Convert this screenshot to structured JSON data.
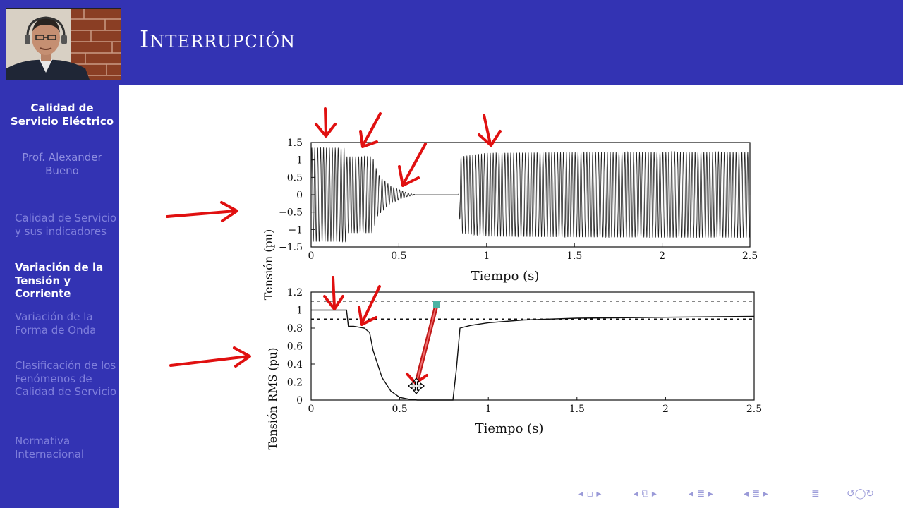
{
  "slide": {
    "title": "Interrupción"
  },
  "sidebar": {
    "course_title": "Calidad de Servicio Eléctrico",
    "author": "Prof. Alexander Bueno",
    "sections": [
      {
        "label": "Calidad de Servicio y sus indicadores",
        "active": false
      },
      {
        "label": "Variación de la Tensión y Corriente",
        "active": true
      },
      {
        "label": "Variación de la Forma de Onda",
        "active": false
      },
      {
        "label": "Clasificación de los Fenómenos de Calidad de Servicio",
        "active": false
      },
      {
        "label": "Normativa Internacional",
        "active": false
      }
    ]
  },
  "navigation": {
    "icons": [
      "nav-first-icon",
      "nav-frame-icon",
      "nav-section-icon",
      "nav-subsection-icon",
      "nav-outline-icon",
      "search-icon"
    ]
  },
  "colors": {
    "header_blue": "#3333b3",
    "annotation_red": "#e01010",
    "marker_teal": "#4cb3a3"
  },
  "chart_data": [
    {
      "type": "line",
      "xlabel": "Tiempo (s)",
      "ylabel": "Tensión (pu)",
      "xlim": [
        0,
        2.5
      ],
      "ylim": [
        -1.5,
        1.5
      ],
      "xticks": [
        "0",
        "0.5",
        "1",
        "1.5",
        "2",
        "2.5"
      ],
      "yticks": [
        "1.5",
        "1",
        "0.5",
        "0",
        "−0.5",
        "−1",
        "−1.5"
      ],
      "series": [
        {
          "envelope_t": [
            0,
            0.2,
            0.2,
            0.35,
            0.38,
            0.45,
            0.55,
            0.6,
            0.84,
            0.85,
            1.0,
            1.5,
            2.0,
            2.5
          ],
          "envelope_amp": [
            1.35,
            1.35,
            1.1,
            1.1,
            0.6,
            0.25,
            0.05,
            0.0,
            0.0,
            1.1,
            1.2,
            1.22,
            1.23,
            1.23
          ]
        }
      ]
    },
    {
      "type": "line",
      "xlabel": "Tiempo (s)",
      "ylabel": "Tensión RMS (pu)",
      "xlim": [
        0,
        2.5
      ],
      "ylim": [
        0,
        1.2
      ],
      "xticks": [
        "0",
        "0.5",
        "1",
        "1.5",
        "2",
        "2.5"
      ],
      "yticks": [
        "1.2",
        "1",
        "0.8",
        "0.6",
        "0.4",
        "0.2",
        "0"
      ],
      "thresholds": [
        1.1,
        0.9
      ],
      "series": [
        {
          "x": [
            0,
            0.2,
            0.21,
            0.24,
            0.3,
            0.33,
            0.35,
            0.4,
            0.45,
            0.5,
            0.55,
            0.6,
            0.8,
            0.82,
            0.84,
            0.9,
            1.0,
            1.2,
            1.5,
            2.0,
            2.5
          ],
          "y": [
            1.0,
            1.0,
            0.82,
            0.82,
            0.8,
            0.75,
            0.55,
            0.25,
            0.1,
            0.03,
            0.01,
            0.0,
            0.0,
            0.35,
            0.8,
            0.83,
            0.86,
            0.89,
            0.91,
            0.92,
            0.93
          ]
        }
      ]
    }
  ]
}
